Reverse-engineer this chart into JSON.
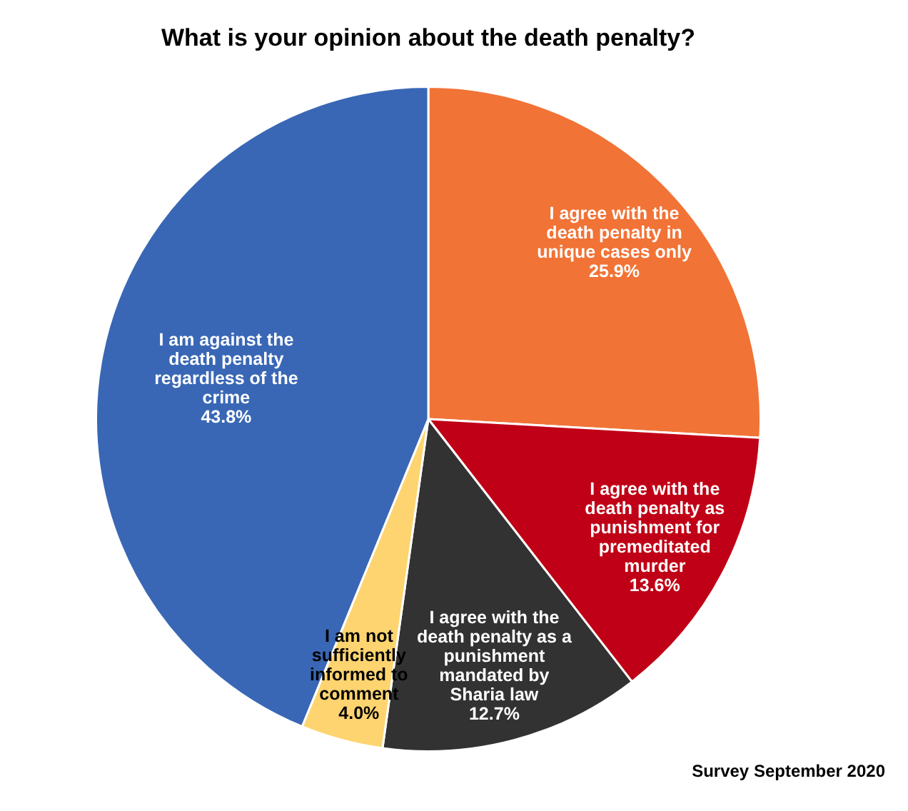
{
  "chart_data": {
    "type": "pie",
    "title": "What is your opinion about the death penalty?",
    "categories": [
      "I agree with the death penalty in unique cases only",
      "I agree with the death penalty as punishment for premeditated murder",
      "I agree with the death penalty as a punishment mandated by Sharia law",
      "I am not sufficiently informed to comment",
      "I am against the death penalty regardless of the crime"
    ],
    "values": [
      25.9,
      13.6,
      12.7,
      4.0,
      43.8
    ],
    "colors": [
      "#f17336",
      "#c00016",
      "#323232",
      "#fdd46f",
      "#3967b5"
    ],
    "value_labels": [
      "25.9%",
      "13.6%",
      "12.7%",
      "4.0%",
      "43.8%"
    ],
    "annotations": [
      "Survey September 2020"
    ]
  }
}
